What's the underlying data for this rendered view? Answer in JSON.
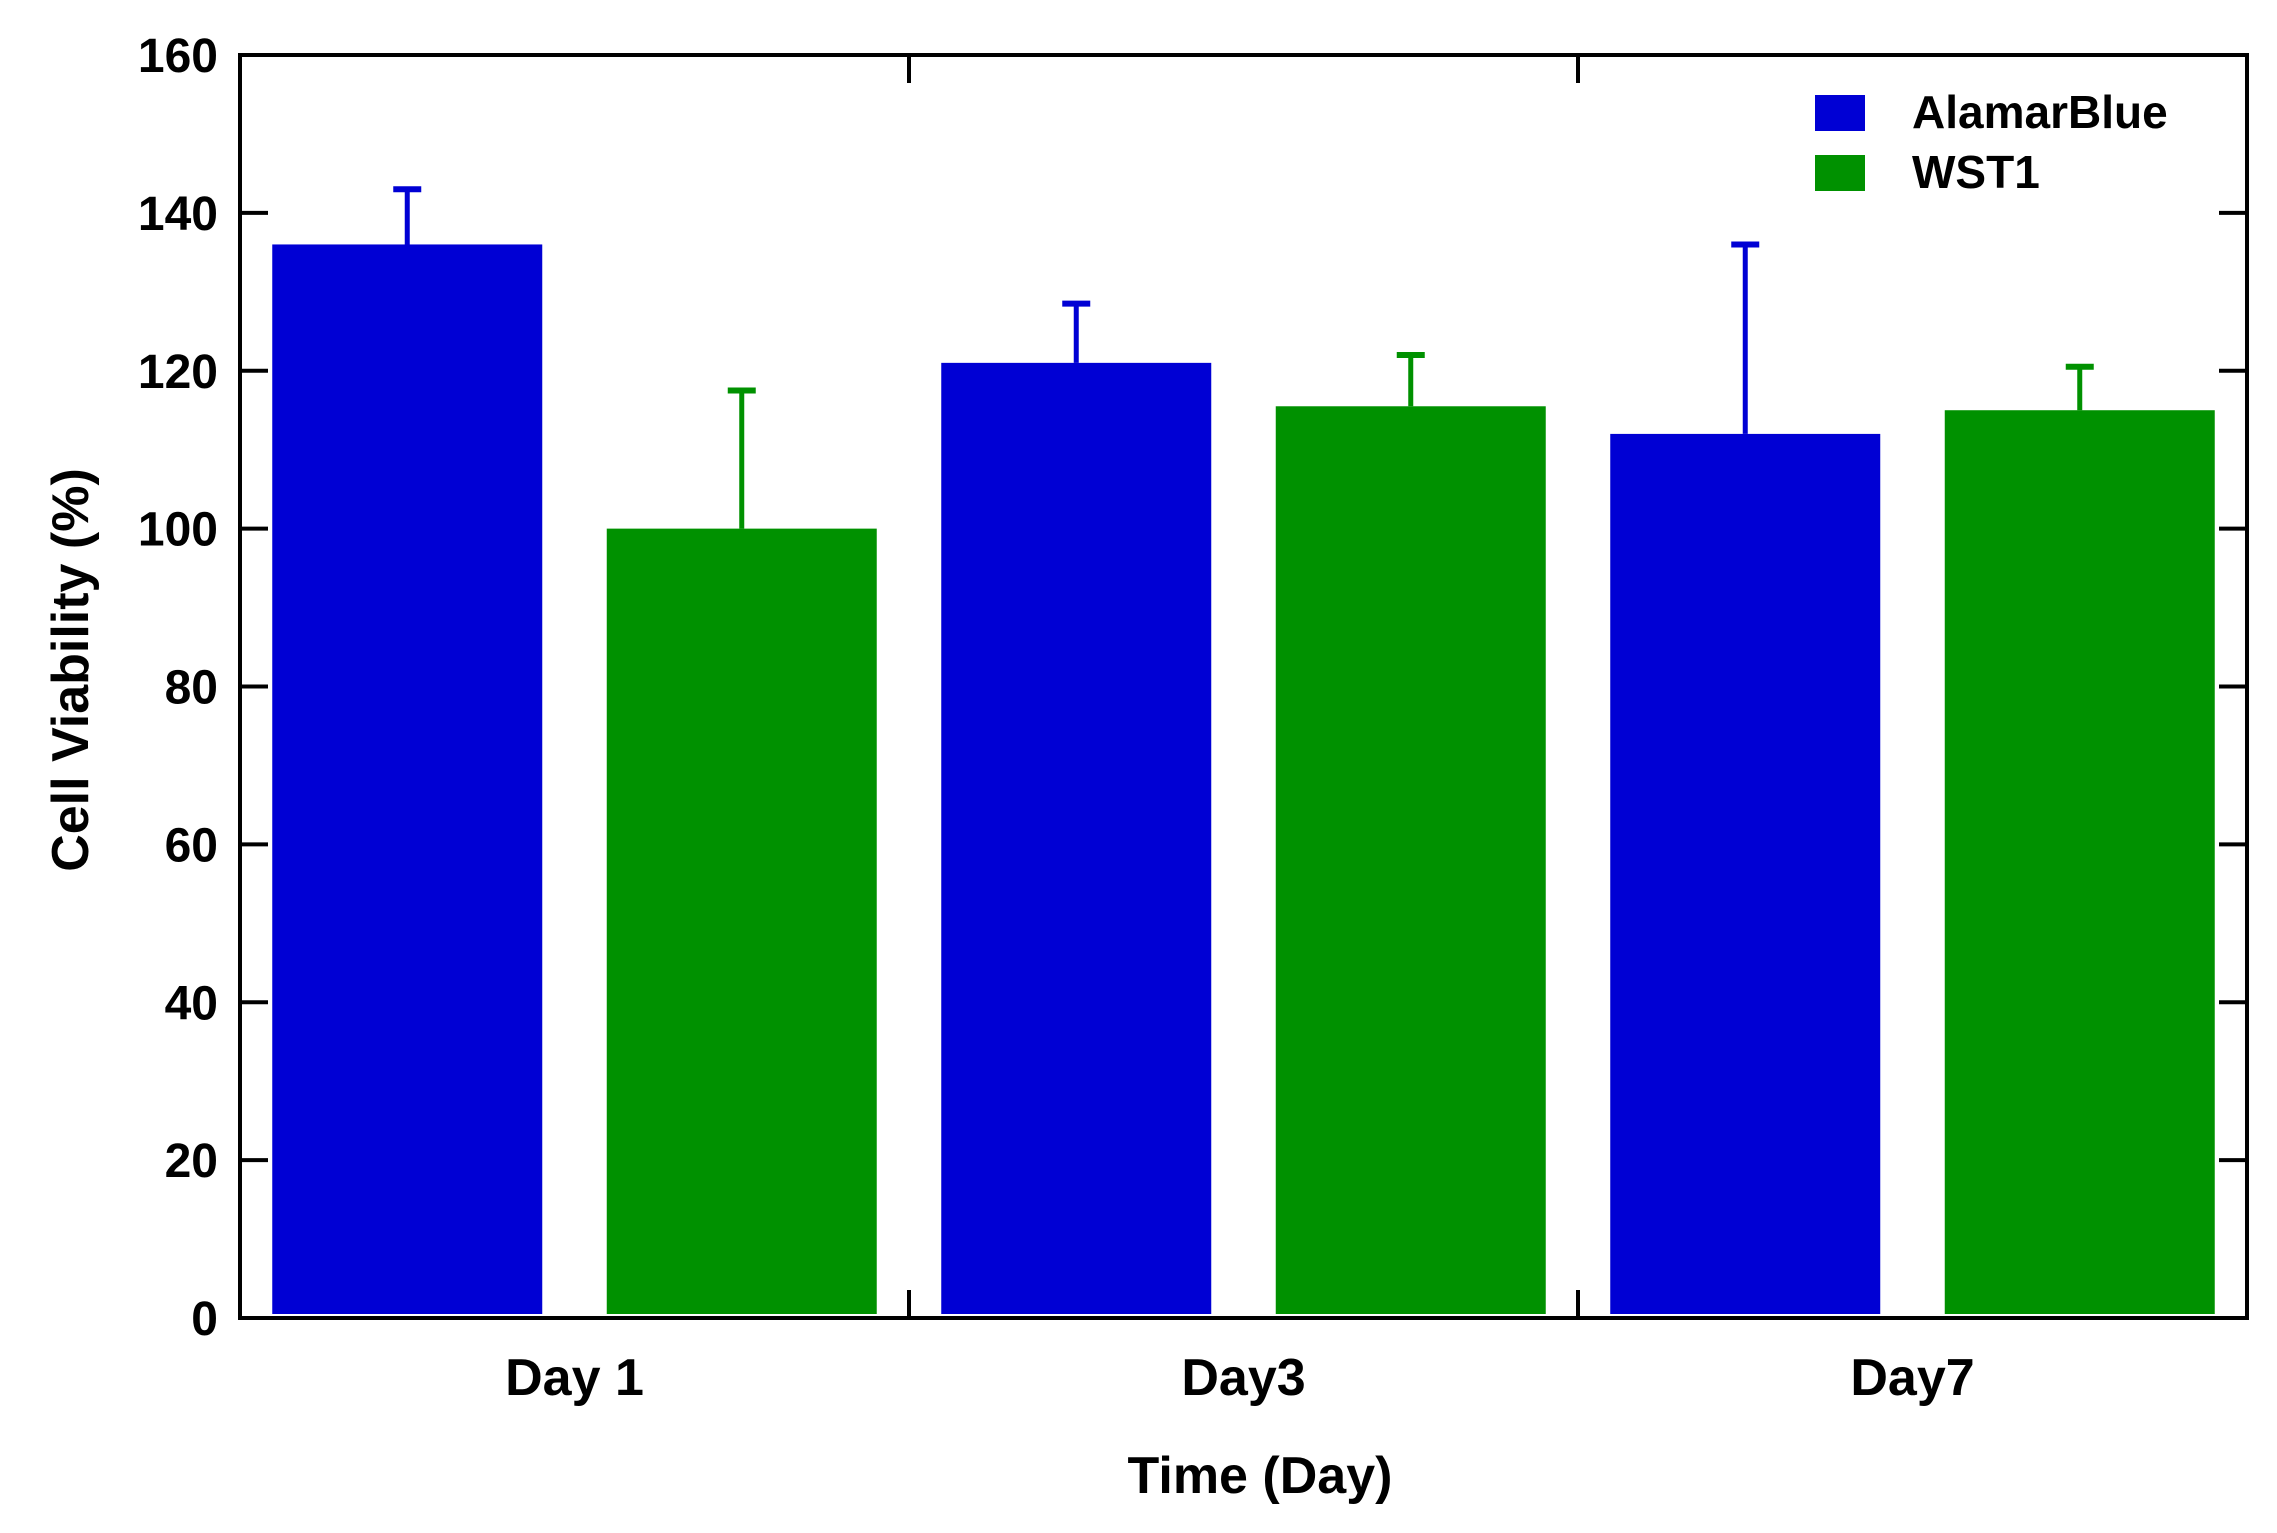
{
  "chart_data": {
    "type": "bar",
    "title": "",
    "xlabel": "Time (Day)",
    "ylabel": "Cell Viability (%)",
    "ylim": [
      0,
      160
    ],
    "yticks": [
      0,
      20,
      40,
      60,
      80,
      100,
      120,
      140,
      160
    ],
    "grid": false,
    "legend_position": "top-right",
    "categories": [
      "Day 1",
      "Day3",
      "Day7"
    ],
    "series": [
      {
        "name": "AlamarBlue",
        "color": "#0000d4",
        "values": [
          136,
          121,
          112
        ],
        "errors": [
          7,
          7.5,
          24
        ]
      },
      {
        "name": "WST1",
        "color": "#009100",
        "values": [
          100,
          115.5,
          115
        ],
        "errors": [
          17.5,
          6.5,
          5.5
        ]
      }
    ]
  }
}
